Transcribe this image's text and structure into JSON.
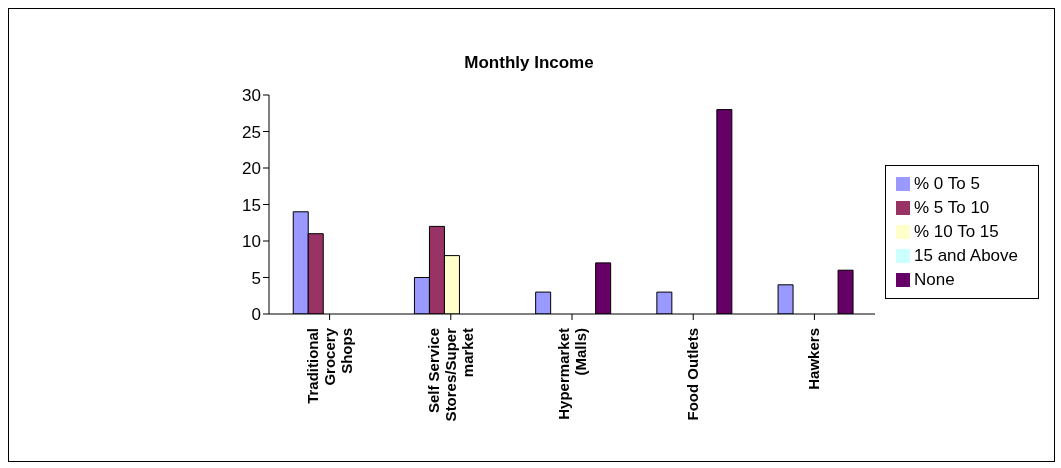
{
  "chart_data": {
    "type": "bar",
    "title": "Monthly Income",
    "categories": [
      "Traditional Grocery Shops",
      "Self Service Stores/Super market",
      "Hypermarket (Malls)",
      "Food Outlets",
      "Hawkers"
    ],
    "series": [
      {
        "name": "% 0 To 5",
        "color": "#9999ff",
        "values": [
          14,
          5,
          3,
          3,
          4
        ]
      },
      {
        "name": "% 5 To 10",
        "color": "#993366",
        "values": [
          11,
          12,
          0,
          0,
          0
        ]
      },
      {
        "name": "% 10 To 15",
        "color": "#ffffcc",
        "values": [
          0,
          8,
          0,
          0,
          0
        ]
      },
      {
        "name": "15 and Above",
        "color": "#ccffff",
        "values": [
          0,
          0,
          0,
          0,
          0
        ]
      },
      {
        "name": "None",
        "color": "#660066",
        "values": [
          0,
          0,
          7,
          28,
          6
        ]
      }
    ],
    "ylim": [
      0,
      30
    ],
    "yticks": [
      0,
      5,
      10,
      15,
      20,
      25,
      30
    ],
    "grid": false,
    "legend": "right"
  }
}
